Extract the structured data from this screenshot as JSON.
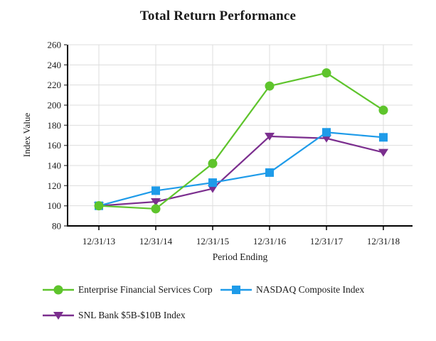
{
  "chart_data": {
    "type": "line",
    "title": "Total Return Performance",
    "xlabel": "Period Ending",
    "ylabel": "Index Value",
    "ylim": [
      80,
      260
    ],
    "ytick_step": 20,
    "grid": true,
    "legend_position": "bottom-left",
    "categories": [
      "12/31/13",
      "12/31/14",
      "12/31/15",
      "12/31/16",
      "12/31/17",
      "12/31/18"
    ],
    "series": [
      {
        "name": "Enterprise Financial Services Corp",
        "marker": "circle",
        "color": "#5EC42C",
        "values": [
          100,
          97,
          142,
          219,
          232,
          195
        ]
      },
      {
        "name": "NASDAQ Composite Index",
        "marker": "square",
        "color": "#1E9BE9",
        "values": [
          100,
          115,
          123,
          133,
          173,
          168
        ]
      },
      {
        "name": "SNL Bank $5B-$10B Index",
        "marker": "triangle-down",
        "color": "#7B2E8E",
        "values": [
          100,
          104,
          117,
          169,
          167,
          153
        ]
      }
    ],
    "axis_color": "#000000",
    "gridline_color": "#dddddd"
  }
}
